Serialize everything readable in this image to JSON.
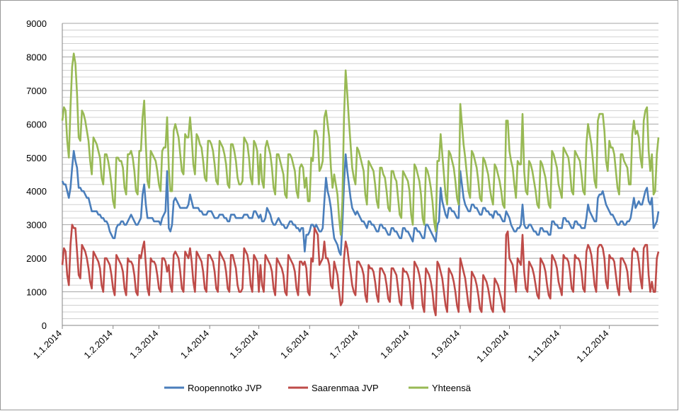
{
  "chart_data": {
    "type": "line",
    "xlim": [
      0,
      364
    ],
    "xticks": [
      {
        "value": 0,
        "label": "1.1.2014"
      },
      {
        "value": 31,
        "label": "1.2.2014"
      },
      {
        "value": 59,
        "label": "1.3.2014"
      },
      {
        "value": 90,
        "label": "1.4.2014"
      },
      {
        "value": 120,
        "label": "1.5.2014"
      },
      {
        "value": 151,
        "label": "1.6.2014"
      },
      {
        "value": 181,
        "label": "1.7.2014"
      },
      {
        "value": 212,
        "label": "1.8.2014"
      },
      {
        "value": 243,
        "label": "1.9.2014"
      },
      {
        "value": 273,
        "label": "1.10.2014"
      },
      {
        "value": 304,
        "label": "1.11.2014"
      },
      {
        "value": 334,
        "label": "1.12.2014"
      }
    ],
    "ylim": [
      0,
      9000
    ],
    "yticks": [
      0,
      1000,
      2000,
      3000,
      4000,
      5000,
      6000,
      7000,
      8000,
      9000
    ],
    "grid": true,
    "minor_grid": true,
    "legend": "bottom",
    "series": [
      {
        "name": "Roopennotko JVP",
        "color": "#4a7ebb",
        "values": [
          4300,
          4200,
          4200,
          4000,
          3800,
          4100,
          4700,
          5200,
          4900,
          4700,
          4100,
          4100,
          4000,
          4000,
          3900,
          3800,
          3800,
          3600,
          3400,
          3400,
          3400,
          3400,
          3300,
          3300,
          3200,
          3200,
          3100,
          3100,
          3000,
          2800,
          2700,
          2600,
          2600,
          2900,
          3000,
          3000,
          3100,
          3100,
          3000,
          3000,
          3100,
          3200,
          3300,
          3200,
          3100,
          3000,
          3000,
          3100,
          3200,
          3900,
          4200,
          3600,
          3200,
          3200,
          3200,
          3200,
          3100,
          3100,
          3100,
          3100,
          3000,
          3200,
          3300,
          3400,
          4600,
          2900,
          2800,
          3000,
          3700,
          3800,
          3700,
          3600,
          3500,
          3500,
          3500,
          3500,
          3500,
          3600,
          3900,
          3700,
          3500,
          3500,
          3500,
          3500,
          3400,
          3400,
          3300,
          3300,
          3300,
          3400,
          3400,
          3400,
          3300,
          3200,
          3200,
          3200,
          3300,
          3300,
          3300,
          3200,
          3200,
          3100,
          3100,
          3300,
          3300,
          3300,
          3200,
          3200,
          3200,
          3200,
          3200,
          3300,
          3300,
          3300,
          3200,
          3200,
          3200,
          3400,
          3400,
          3300,
          3200,
          3300,
          3100,
          3100,
          3200,
          3500,
          3400,
          3300,
          3100,
          3000,
          3000,
          3100,
          3200,
          3100,
          3000,
          3000,
          2900,
          2900,
          3000,
          3100,
          3100,
          3000,
          3000,
          2900,
          2900,
          2800,
          2900,
          2900,
          2200,
          2700,
          2700,
          2800,
          3000,
          3000,
          2900,
          3000,
          2900,
          2800,
          2800,
          2900,
          3700,
          4400,
          4000,
          3800,
          3500,
          3000,
          2600,
          2500,
          2400,
          2200,
          2100,
          3000,
          4200,
          5100,
          4600,
          4200,
          3800,
          3500,
          3400,
          3300,
          3400,
          3300,
          3200,
          3100,
          3100,
          3000,
          2900,
          3100,
          3100,
          3000,
          3000,
          2900,
          2800,
          2800,
          3000,
          3000,
          2900,
          2900,
          2800,
          2700,
          2700,
          2900,
          2900,
          2800,
          2800,
          2700,
          2600,
          2600,
          2900,
          2900,
          2800,
          2800,
          2700,
          2600,
          2500,
          2900,
          2900,
          2800,
          2800,
          2700,
          2600,
          2600,
          3000,
          3000,
          2900,
          2800,
          2700,
          2600,
          2500,
          3000,
          3100,
          4100,
          3700,
          3500,
          3300,
          3200,
          3500,
          3500,
          3400,
          3400,
          3300,
          3200,
          3200,
          4600,
          4200,
          3800,
          3600,
          3500,
          3400,
          3400,
          3600,
          3600,
          3500,
          3500,
          3400,
          3300,
          3300,
          3500,
          3500,
          3400,
          3400,
          3300,
          3300,
          3200,
          3400,
          3400,
          3300,
          3300,
          3200,
          3100,
          3100,
          3400,
          3300,
          3200,
          3000,
          2900,
          2800,
          2800,
          2900,
          2900,
          3000,
          3600,
          3000,
          2900,
          2900,
          3000,
          3000,
          2900,
          2800,
          2800,
          2700,
          2700,
          2900,
          2900,
          2800,
          2800,
          2800,
          2700,
          2700,
          3100,
          3100,
          3000,
          3000,
          2900,
          2900,
          2900,
          3200,
          3200,
          3100,
          3100,
          3000,
          2900,
          2900,
          3100,
          3100,
          3000,
          3000,
          2900,
          2900,
          2900,
          3200,
          3600,
          3400,
          3300,
          3200,
          3100,
          3100,
          3800,
          3900,
          3900,
          4000,
          3800,
          3600,
          3500,
          3400,
          3300,
          3300,
          3200,
          3100,
          3000,
          3000,
          3100,
          3100,
          3000,
          3000,
          3100,
          3100,
          3200,
          3500,
          3800,
          3500,
          3600,
          3700,
          3600,
          3600,
          3800,
          4000,
          4100,
          3700,
          3600,
          3800,
          2900,
          3000,
          3100,
          3400
        ]
      },
      {
        "name": "Saarenmaa JVP",
        "color": "#be4b48",
        "values": [
          1800,
          2300,
          2200,
          1500,
          1200,
          2400,
          3000,
          2900,
          2900,
          2200,
          1500,
          1400,
          2400,
          2300,
          2200,
          2000,
          1700,
          1300,
          1100,
          2200,
          2100,
          2000,
          1900,
          1700,
          1200,
          1000,
          2000,
          2000,
          1900,
          1800,
          1500,
          1100,
          900,
          2100,
          2000,
          1900,
          1800,
          1600,
          1100,
          900,
          2000,
          1900,
          1900,
          1800,
          1500,
          1000,
          900,
          2100,
          2000,
          2300,
          2500,
          1800,
          1100,
          900,
          2000,
          1900,
          1900,
          1800,
          1500,
          1100,
          1000,
          2000,
          2000,
          1900,
          1600,
          1800,
          1200,
          1000,
          2100,
          2200,
          2100,
          2000,
          1600,
          1100,
          1000,
          2200,
          2100,
          2000,
          2300,
          1900,
          1300,
          1000,
          2200,
          2100,
          2000,
          1900,
          1600,
          1100,
          1000,
          2100,
          2100,
          2000,
          1900,
          1600,
          1100,
          1000,
          2200,
          2100,
          2000,
          1900,
          1600,
          1100,
          1000,
          2100,
          2100,
          1900,
          1700,
          1200,
          1000,
          1000,
          1100,
          2300,
          2200,
          2100,
          1800,
          1200,
          1000,
          2100,
          2000,
          1900,
          1000,
          1800,
          1200,
          1000,
          2100,
          2000,
          1900,
          1800,
          1600,
          1100,
          900,
          2000,
          1900,
          1800,
          1700,
          1500,
          1000,
          900,
          2100,
          2000,
          1900,
          1800,
          1600,
          1100,
          900,
          1900,
          1900,
          1800,
          1900,
          1700,
          1000,
          900,
          2000,
          1900,
          2900,
          2800,
          2700,
          1800,
          1900,
          2000,
          2500,
          2000,
          2000,
          1800,
          1200,
          1100,
          1900,
          1700,
          1500,
          1000,
          600,
          700,
          2000,
          2500,
          2300,
          1900,
          1600,
          1200,
          1000,
          900,
          1900,
          1900,
          1800,
          1700,
          1500,
          900,
          700,
          1800,
          1700,
          1700,
          1600,
          1300,
          900,
          700,
          1700,
          1700,
          1600,
          1500,
          1200,
          800,
          700,
          1700,
          1700,
          1600,
          1500,
          1100,
          700,
          600,
          1700,
          1600,
          1600,
          1500,
          1300,
          700,
          500,
          1900,
          1800,
          1700,
          1500,
          1200,
          600,
          400,
          1700,
          1600,
          1500,
          1300,
          1000,
          500,
          300,
          1900,
          1800,
          1600,
          1400,
          1000,
          600,
          400,
          1700,
          1600,
          1500,
          1300,
          1000,
          600,
          400,
          2000,
          1800,
          1600,
          1400,
          1000,
          600,
          400,
          1600,
          1500,
          1400,
          1200,
          900,
          500,
          400,
          1500,
          1400,
          1300,
          1100,
          800,
          500,
          400,
          1400,
          1300,
          1200,
          1000,
          800,
          500,
          400,
          2700,
          2800,
          2000,
          1900,
          1800,
          1400,
          1000,
          2000,
          1900,
          1800,
          2700,
          1600,
          1100,
          1000,
          1900,
          1800,
          1700,
          1500,
          1200,
          900,
          800,
          2000,
          1900,
          1800,
          1600,
          1200,
          900,
          800,
          2100,
          2000,
          1900,
          1700,
          1300,
          1100,
          900,
          2100,
          2000,
          2000,
          1900,
          1600,
          1100,
          1000,
          2100,
          2000,
          2000,
          1900,
          1600,
          1100,
          1000,
          2200,
          2400,
          2300,
          2100,
          1700,
          1200,
          1000,
          2300,
          2400,
          2400,
          2300,
          2000,
          1300,
          1100,
          2100,
          2000,
          2000,
          1900,
          1500,
          1100,
          900,
          2000,
          2000,
          1900,
          1800,
          1600,
          1100,
          1000,
          2200,
          2300,
          2200,
          2200,
          1900,
          1400,
          1100,
          2300,
          2400,
          2400,
          1500,
          1000,
          1300,
          1000,
          1000,
          2000,
          2200
        ]
      },
      {
        "name": "Yhteensä",
        "color": "#98b954",
        "values": [
          6100,
          6500,
          6400,
          5500,
          5000,
          6500,
          7700,
          8100,
          7800,
          6900,
          5600,
          5500,
          6400,
          6300,
          6100,
          5800,
          5500,
          4900,
          4500,
          5600,
          5500,
          5400,
          5200,
          5000,
          4400,
          4200,
          5100,
          5100,
          4900,
          4600,
          4200,
          3700,
          3500,
          5000,
          5000,
          4900,
          4900,
          4700,
          4100,
          3900,
          5100,
          5100,
          5200,
          5000,
          4600,
          4000,
          3900,
          5200,
          5200,
          6200,
          6700,
          5400,
          4300,
          4100,
          5200,
          5100,
          5000,
          4900,
          4600,
          4200,
          4000,
          5200,
          5300,
          5300,
          6200,
          4700,
          4000,
          4000,
          5800,
          6000,
          5800,
          5600,
          5100,
          4600,
          4500,
          5700,
          5600,
          5600,
          6200,
          5600,
          4800,
          4500,
          5700,
          5600,
          5400,
          5300,
          4900,
          4400,
          4300,
          5500,
          5500,
          5400,
          5200,
          4800,
          4300,
          4200,
          5500,
          5400,
          5300,
          5100,
          4800,
          4200,
          4100,
          5400,
          5400,
          5200,
          4900,
          4400,
          4200,
          4200,
          4300,
          5600,
          5500,
          5400,
          5000,
          4400,
          4200,
          5500,
          5400,
          5200,
          4200,
          5100,
          4300,
          4100,
          5300,
          5500,
          5300,
          5100,
          4700,
          4100,
          3900,
          5100,
          5100,
          4900,
          4700,
          4500,
          3900,
          3800,
          5100,
          5100,
          5000,
          4800,
          4600,
          4000,
          3800,
          4700,
          4800,
          4700,
          4100,
          4400,
          3700,
          3700,
          5000,
          4900,
          5800,
          5800,
          5600,
          4600,
          4700,
          4900,
          6200,
          6400,
          6000,
          5600,
          4700,
          4100,
          4500,
          4200,
          3900,
          3200,
          2700,
          3700,
          6200,
          7600,
          6900,
          6100,
          5400,
          4700,
          4400,
          4200,
          5300,
          5200,
          5000,
          4800,
          4600,
          3900,
          3600,
          4900,
          4800,
          4700,
          4600,
          4200,
          3700,
          3500,
          4700,
          4700,
          4500,
          4400,
          4000,
          3500,
          3400,
          4600,
          4600,
          4400,
          4300,
          3800,
          3300,
          3200,
          4600,
          4500,
          4400,
          4300,
          4000,
          3300,
          3000,
          4800,
          4700,
          4500,
          4300,
          3900,
          3200,
          3000,
          4700,
          4600,
          4400,
          4100,
          3700,
          3100,
          2800,
          4900,
          4900,
          5700,
          5100,
          4500,
          3900,
          3600,
          5200,
          5100,
          4900,
          4700,
          4300,
          3800,
          3600,
          6600,
          6000,
          5400,
          5000,
          4500,
          4000,
          3800,
          5200,
          5100,
          4900,
          4700,
          4300,
          3800,
          3700,
          5000,
          4900,
          4700,
          4500,
          4100,
          3800,
          3600,
          4800,
          4700,
          4500,
          4300,
          4000,
          3600,
          3500,
          6100,
          6100,
          5200,
          4900,
          4700,
          4200,
          3800,
          4900,
          4800,
          4800,
          6300,
          4600,
          4000,
          3900,
          4900,
          4800,
          4600,
          4300,
          4000,
          3600,
          3500,
          4900,
          4800,
          4600,
          4400,
          4000,
          3600,
          3500,
          5200,
          5100,
          4900,
          4700,
          4200,
          4000,
          3800,
          5300,
          5200,
          5100,
          5000,
          4600,
          4000,
          3900,
          5200,
          5100,
          5000,
          4900,
          4500,
          4000,
          3900,
          5400,
          6000,
          5700,
          5400,
          4900,
          4300,
          4100,
          6100,
          6300,
          6300,
          6300,
          5800,
          4900,
          4600,
          5500,
          5300,
          5300,
          5100,
          4600,
          4100,
          3900,
          5100,
          5100,
          4900,
          4800,
          4700,
          4200,
          4200,
          5700,
          6100,
          5700,
          5800,
          5600,
          5000,
          4700,
          6100,
          6400,
          6500,
          5200,
          4600,
          5100,
          3900,
          4000,
          5100,
          5600
        ]
      }
    ]
  }
}
